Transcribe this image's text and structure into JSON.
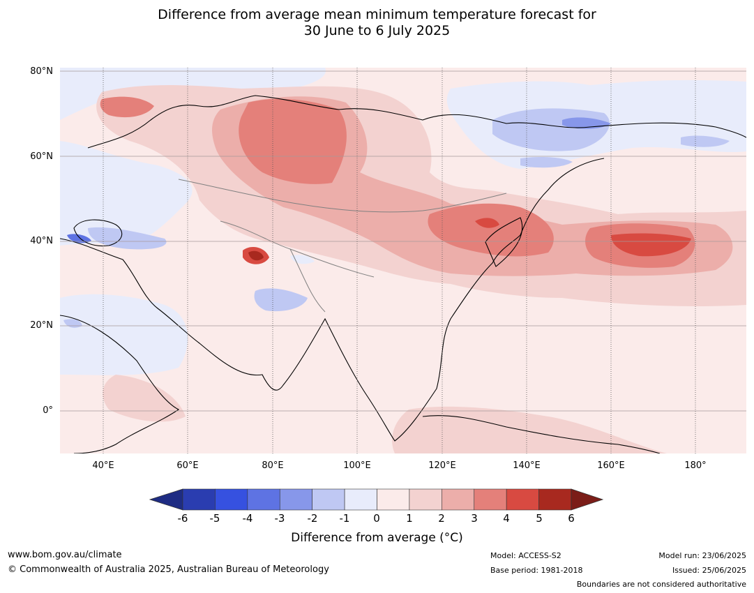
{
  "title": {
    "line1": "Difference from average mean minimum temperature forecast for",
    "line2": "30 June to 6 July 2025"
  },
  "map": {
    "lat_labels": [
      "80°N",
      "60°N",
      "40°N",
      "20°N",
      "0°"
    ],
    "lon_labels": [
      "40°E",
      "60°E",
      "80°E",
      "100°E",
      "120°E",
      "140°E",
      "160°E",
      "180°"
    ]
  },
  "colorbar": {
    "ticks": [
      "-6",
      "-5",
      "-4",
      "-3",
      "-2",
      "-1",
      "0",
      "1",
      "2",
      "3",
      "4",
      "5",
      "6"
    ],
    "colors": [
      "#1e2c83",
      "#2a3db0",
      "#3651e0",
      "#5e73e3",
      "#8797ea",
      "#bfc8f3",
      "#e8ecfb",
      "#fbebea",
      "#f3d2d0",
      "#ecaeaa",
      "#e4807a",
      "#d84a41",
      "#a8291f",
      "#7b1d18"
    ],
    "label": "Difference from average (°C)"
  },
  "footer": {
    "website": "www.bom.gov.au/climate",
    "copyright": "© Commonwealth of Australia 2025, Australian Bureau of Meteorology",
    "model": "Model: ACCESS-S2",
    "base_period": "Base period: 1981-2018",
    "model_run": "Model run: 23/06/2025",
    "issued": "Issued: 25/06/2025",
    "disclaimer": "Boundaries are not considered authoritative"
  }
}
